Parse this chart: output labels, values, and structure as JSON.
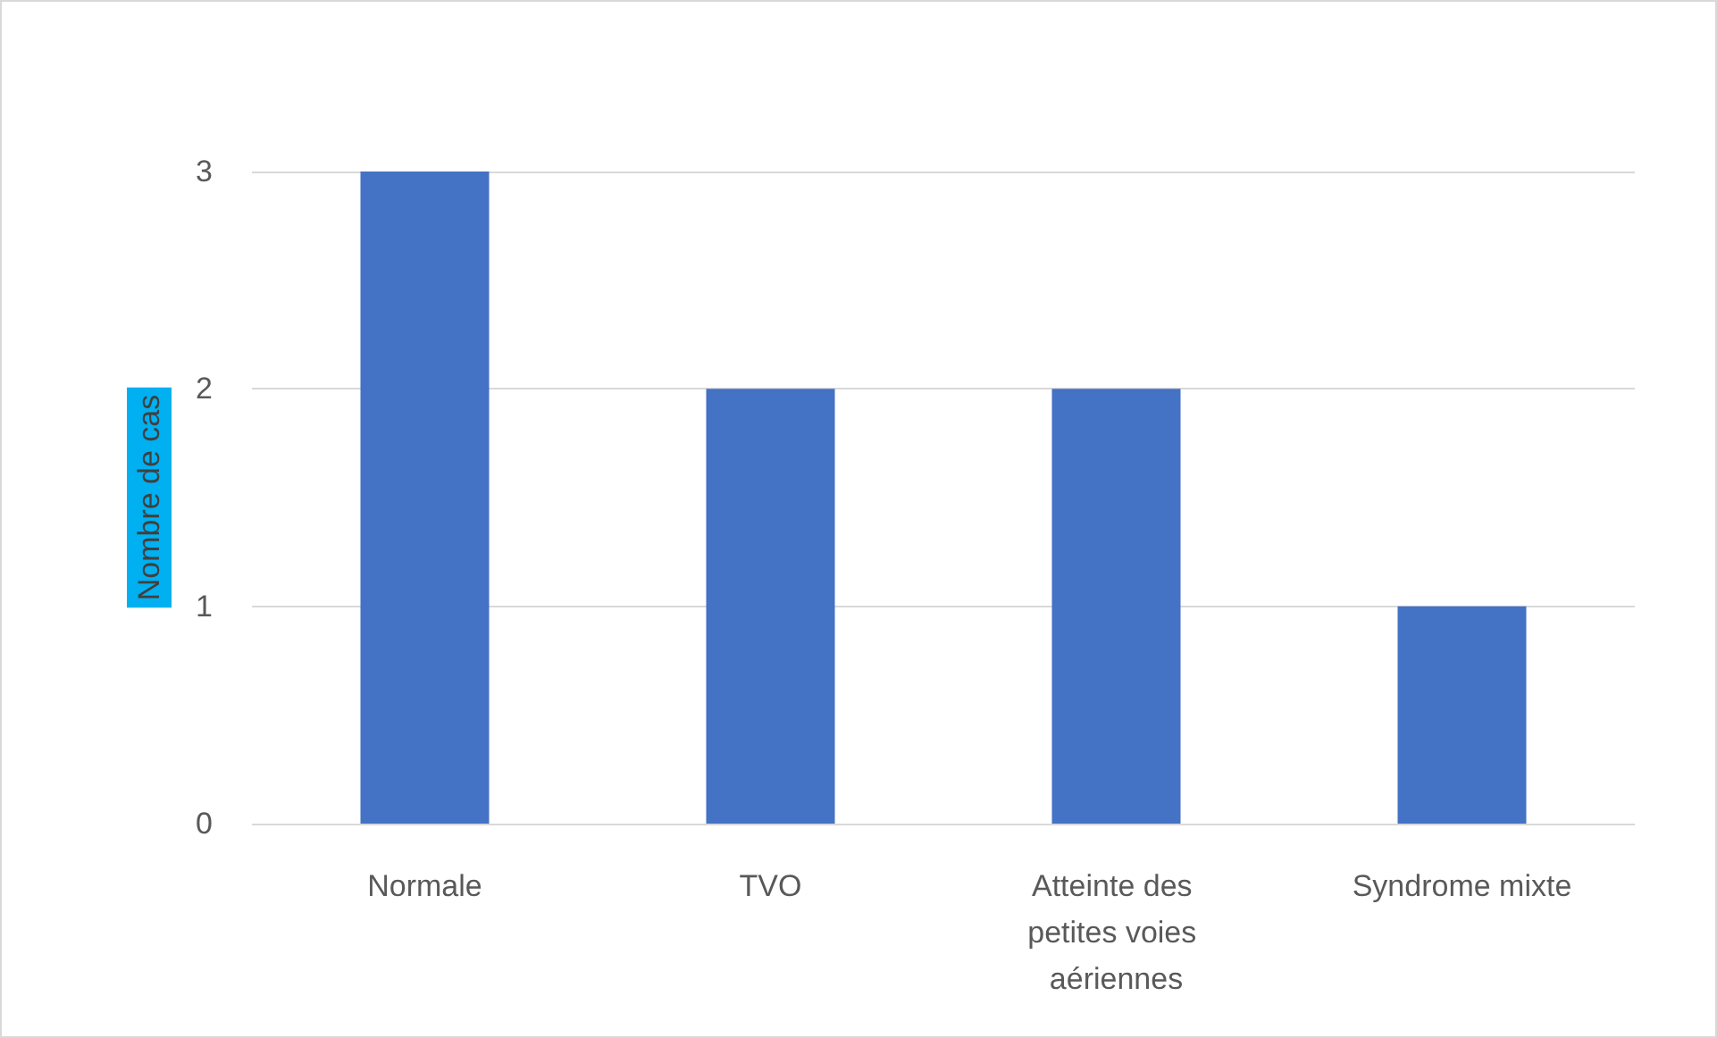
{
  "chart_data": {
    "type": "bar",
    "ylabel": "Nombre de cas",
    "categories": [
      "Normale",
      "TVO",
      "Atteinte des petites voies aériennes",
      "Syndrome mixte"
    ],
    "values": [
      3,
      2,
      2,
      1
    ],
    "color": "#4472c4",
    "ylim": [
      0,
      3
    ],
    "yticks": [
      0,
      1,
      2,
      3
    ],
    "grid": "y"
  }
}
